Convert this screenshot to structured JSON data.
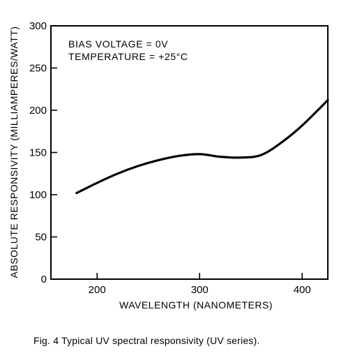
{
  "caption": "Fig. 4 Typical UV spectral responsivity (UV series).",
  "chart_data": {
    "type": "line",
    "title": "",
    "xlabel": "WAVELENGTH (NANOMETERS)",
    "ylabel": "ABSOLUTE RESPONSIVITY (MILLIAMPERES/WATT)",
    "xlim": [
      155,
      425
    ],
    "ylim": [
      0,
      300
    ],
    "xticks": [
      200,
      300,
      400
    ],
    "yticks": [
      0,
      50,
      100,
      150,
      200,
      250,
      300
    ],
    "grid": false,
    "legend": "none",
    "annotations": [
      "BIAS VOLTAGE = 0V",
      "TEMPERATURE = +25°C"
    ],
    "series": [
      {
        "x": [
          180,
          200,
          220,
          240,
          260,
          280,
          300,
          320,
          340,
          360,
          380,
          400,
          425
        ],
        "y": [
          102,
          114,
          125,
          134,
          141,
          146,
          148,
          145,
          144,
          147,
          162,
          182,
          212
        ]
      }
    ]
  }
}
